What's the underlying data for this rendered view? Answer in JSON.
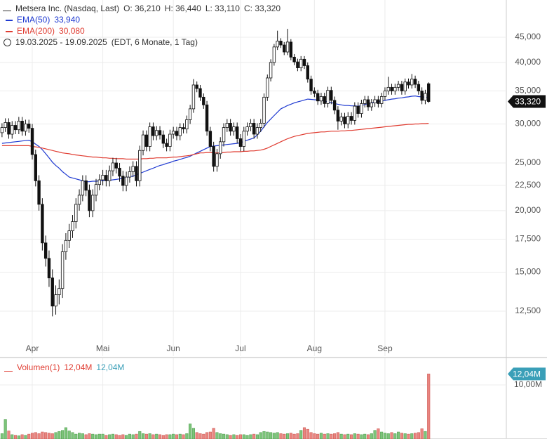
{
  "chart_data": {
    "type": "candlestick",
    "title": "Metsera Inc. (Nasdaq, Last)",
    "ohlc_labels": [
      "O: 36,210",
      "H: 36,440",
      "L: 33,110",
      "C: 33,320"
    ],
    "date_range": "19.03.2025 - 19.09.2025",
    "range_info": "(EDT, 6 Monate, 1 Tag)",
    "log_scale": true,
    "grid": true,
    "up_color": "#ffffff",
    "down_color": "#111111",
    "open": [
      28.8,
      29.5,
      30.2,
      28.6,
      29.8,
      29.2,
      30.4,
      29.0,
      30.0,
      29.4,
      26.0,
      23.0,
      20.6,
      17.2,
      16.0,
      14.6,
      12.8,
      13.5,
      13.9,
      16.5,
      17.4,
      18.2,
      19.0,
      20.6,
      21.5,
      23.0,
      22.0,
      20.0,
      21.5,
      22.6,
      23.1,
      23.6,
      23.0,
      24.1,
      25.0,
      24.4,
      23.5,
      22.5,
      23.4,
      24.0,
      24.6,
      23.0,
      26.5,
      28.5,
      27.0,
      29.6,
      28.4,
      29.1,
      28.5,
      27.4,
      27.0,
      28.6,
      29.0,
      28.4,
      29.5,
      29.3,
      30.6,
      32.2,
      36.0,
      35.4,
      34.0,
      32.8,
      29.0,
      27.0,
      24.6,
      26.1,
      27.6,
      29.5,
      30.1,
      29.0,
      29.6,
      28.0,
      27.0,
      29.0,
      29.6,
      30.1,
      28.6,
      29.5,
      30.1,
      34.0,
      37.2,
      40.0,
      43.0,
      44.2,
      43.4,
      42.0,
      44.0,
      41.0,
      40.1,
      39.0,
      40.6,
      39.4,
      37.0,
      35.0,
      34.6,
      33.4,
      34.1,
      33.0,
      35.1,
      33.5,
      32.0,
      30.4,
      31.0,
      30.0,
      31.1,
      30.5,
      32.6,
      31.5,
      33.0,
      33.6,
      32.5,
      33.1,
      33.6,
      33.0,
      34.1,
      35.0,
      35.6,
      35.0,
      35.6,
      36.1,
      35.0,
      36.5,
      36.0,
      37.0,
      36.1,
      35.0,
      33.5,
      36.21
    ],
    "high": [
      30.1,
      30.8,
      30.8,
      30.4,
      30.4,
      31.0,
      31.0,
      30.6,
      30.6,
      30.0,
      26.6,
      23.6,
      21.2,
      17.8,
      16.6,
      15.2,
      14.1,
      14.5,
      17.1,
      18.0,
      18.8,
      19.6,
      21.2,
      22.1,
      23.6,
      23.6,
      22.6,
      22.1,
      23.2,
      23.7,
      24.2,
      24.2,
      24.7,
      25.6,
      25.6,
      25.0,
      24.1,
      24.0,
      24.6,
      25.2,
      25.2,
      27.1,
      29.1,
      29.1,
      30.2,
      30.2,
      29.7,
      29.7,
      29.1,
      28.0,
      29.2,
      29.6,
      29.6,
      30.1,
      30.1,
      31.2,
      32.8,
      37.0,
      36.6,
      36.0,
      34.6,
      33.4,
      29.6,
      27.6,
      26.7,
      28.2,
      30.1,
      30.7,
      30.7,
      30.2,
      30.2,
      28.6,
      29.6,
      30.2,
      30.7,
      30.7,
      30.1,
      30.7,
      34.6,
      37.8,
      40.6,
      43.6,
      46.4,
      44.8,
      44.0,
      46.8,
      44.6,
      41.6,
      40.7,
      41.2,
      41.2,
      40.0,
      37.6,
      35.6,
      35.2,
      34.7,
      34.7,
      35.7,
      35.7,
      34.1,
      32.6,
      31.6,
      31.6,
      31.7,
      31.7,
      33.2,
      33.2,
      33.6,
      34.2,
      34.2,
      33.7,
      34.2,
      34.2,
      34.7,
      35.6,
      37.4,
      36.2,
      36.2,
      36.7,
      36.7,
      37.1,
      37.1,
      37.9,
      37.6,
      36.7,
      35.6,
      35.2,
      36.44
    ],
    "low": [
      28.2,
      28.9,
      28.0,
      28.0,
      28.6,
      28.6,
      28.4,
      28.4,
      28.8,
      25.4,
      22.4,
      20.0,
      16.6,
      15.4,
      14.0,
      12.2,
      12.3,
      12.9,
      13.3,
      15.9,
      16.8,
      17.6,
      18.4,
      20.0,
      20.9,
      21.4,
      19.4,
      19.4,
      20.9,
      22.0,
      22.5,
      22.4,
      22.4,
      23.5,
      23.8,
      22.9,
      21.9,
      21.9,
      22.8,
      23.4,
      22.4,
      22.4,
      25.9,
      26.4,
      26.4,
      27.8,
      27.8,
      27.9,
      26.8,
      26.4,
      26.4,
      28.0,
      27.8,
      27.8,
      28.7,
      28.7,
      30.0,
      31.6,
      34.8,
      33.4,
      32.2,
      28.4,
      26.4,
      24.0,
      24.0,
      25.5,
      27.0,
      28.9,
      28.4,
      28.4,
      27.4,
      26.4,
      26.4,
      28.4,
      29.0,
      28.0,
      28.0,
      28.9,
      29.5,
      33.4,
      36.6,
      39.4,
      42.4,
      42.8,
      41.4,
      41.4,
      40.4,
      39.5,
      38.4,
      38.4,
      38.8,
      36.4,
      34.4,
      34.0,
      32.8,
      32.8,
      32.4,
      32.4,
      32.9,
      31.4,
      29.2,
      29.8,
      29.4,
      29.4,
      29.9,
      29.9,
      30.9,
      30.9,
      32.4,
      31.9,
      31.9,
      32.5,
      32.4,
      32.4,
      33.5,
      34.4,
      34.4,
      34.4,
      35.0,
      34.4,
      34.4,
      35.4,
      35.4,
      35.5,
      34.4,
      32.9,
      32.9,
      33.11
    ],
    "close": [
      29.5,
      30.2,
      28.6,
      29.8,
      29.2,
      30.4,
      29.0,
      30.0,
      29.4,
      26.0,
      23.0,
      20.6,
      17.2,
      16.0,
      14.6,
      12.8,
      13.5,
      13.9,
      16.5,
      17.4,
      18.2,
      19.0,
      20.6,
      21.5,
      23.0,
      22.0,
      20.0,
      21.5,
      22.6,
      23.1,
      23.6,
      23.0,
      24.1,
      25.0,
      24.4,
      23.5,
      22.5,
      23.4,
      24.0,
      24.6,
      23.0,
      26.5,
      28.5,
      27.0,
      29.6,
      28.4,
      29.1,
      28.5,
      27.4,
      27.0,
      28.6,
      29.0,
      28.4,
      29.5,
      29.3,
      30.6,
      32.2,
      36.0,
      35.4,
      34.0,
      32.8,
      29.0,
      27.0,
      24.6,
      26.1,
      27.6,
      29.5,
      30.1,
      29.0,
      29.6,
      28.0,
      27.0,
      29.0,
      29.6,
      30.1,
      28.6,
      29.5,
      30.1,
      34.0,
      37.2,
      40.0,
      43.0,
      44.2,
      43.4,
      42.0,
      44.0,
      41.0,
      40.1,
      39.0,
      40.6,
      39.4,
      37.0,
      35.0,
      34.6,
      33.4,
      34.1,
      33.0,
      35.1,
      33.5,
      32.0,
      30.4,
      31.0,
      30.0,
      31.1,
      30.5,
      32.6,
      31.5,
      33.0,
      33.6,
      32.5,
      33.1,
      33.6,
      33.0,
      34.1,
      35.0,
      35.6,
      35.0,
      35.6,
      36.1,
      35.0,
      36.5,
      36.0,
      37.0,
      36.1,
      35.0,
      33.5,
      34.6,
      33.32
    ],
    "series": [
      {
        "name": "EMA(50)",
        "color": "#1f3ad1",
        "value_label": "33,940",
        "values": [
          27.4,
          27.45,
          27.5,
          27.55,
          27.6,
          27.65,
          27.7,
          27.75,
          27.8,
          27.6,
          27.3,
          27.0,
          26.6,
          26.1,
          25.6,
          25.1,
          24.7,
          24.4,
          24.0,
          23.7,
          23.4,
          23.3,
          23.2,
          23.1,
          23.0,
          22.9,
          22.9,
          22.95,
          22.95,
          23.0,
          23.0,
          23.05,
          23.05,
          23.1,
          23.15,
          23.2,
          23.3,
          23.35,
          23.45,
          23.5,
          23.65,
          23.8,
          23.95,
          24.1,
          24.25,
          24.4,
          24.55,
          24.7,
          24.8,
          24.95,
          25.05,
          25.2,
          25.3,
          25.4,
          25.55,
          25.65,
          25.8,
          26.0,
          26.2,
          26.4,
          26.6,
          26.8,
          27.0,
          27.05,
          27.1,
          27.15,
          27.2,
          27.25,
          27.3,
          27.35,
          27.4,
          27.5,
          27.65,
          27.8,
          27.95,
          28.1,
          28.5,
          29.0,
          29.6,
          30.2,
          30.7,
          31.2,
          31.7,
          32.2,
          32.45,
          32.7,
          32.9,
          33.1,
          33.25,
          33.4,
          33.55,
          33.7,
          33.65,
          33.6,
          33.55,
          33.5,
          33.4,
          33.25,
          33.15,
          33.0,
          32.9,
          32.8,
          32.7,
          32.7,
          32.65,
          32.65,
          32.6,
          32.7,
          32.85,
          33.0,
          33.1,
          33.2,
          33.3,
          33.4,
          33.5,
          33.6,
          33.7,
          33.75,
          33.85,
          33.9,
          34.0,
          34.05,
          34.15,
          34.2,
          34.1,
          34.05,
          34.0,
          33.94
        ]
      },
      {
        "name": "EMA(200)",
        "color": "#e03c31",
        "value_label": "30,080",
        "values": [
          27.1,
          27.1,
          27.1,
          27.1,
          27.1,
          27.1,
          27.1,
          27.1,
          27.1,
          27.0,
          26.95,
          26.9,
          26.8,
          26.7,
          26.6,
          26.5,
          26.4,
          26.3,
          26.2,
          26.15,
          26.1,
          26.0,
          25.95,
          25.9,
          25.85,
          25.8,
          25.75,
          25.7,
          25.7,
          25.65,
          25.6,
          25.6,
          25.55,
          25.55,
          25.5,
          25.5,
          25.5,
          25.45,
          25.45,
          25.45,
          25.45,
          25.45,
          25.5,
          25.5,
          25.55,
          25.55,
          25.6,
          25.6,
          25.6,
          25.6,
          25.65,
          25.7,
          25.7,
          25.75,
          25.8,
          25.85,
          25.9,
          26.0,
          26.1,
          26.2,
          26.2,
          26.25,
          26.25,
          26.2,
          26.2,
          26.2,
          26.25,
          26.3,
          26.3,
          26.35,
          26.35,
          26.35,
          26.4,
          26.4,
          26.45,
          26.45,
          26.5,
          26.55,
          26.65,
          26.8,
          27.0,
          27.2,
          27.4,
          27.6,
          27.8,
          28.0,
          28.15,
          28.3,
          28.4,
          28.5,
          28.6,
          28.7,
          28.75,
          28.8,
          28.85,
          28.9,
          28.9,
          28.95,
          29.0,
          29.0,
          29.0,
          29.05,
          29.05,
          29.1,
          29.1,
          29.15,
          29.2,
          29.25,
          29.3,
          29.35,
          29.4,
          29.45,
          29.5,
          29.55,
          29.6,
          29.65,
          29.7,
          29.75,
          29.8,
          29.85,
          29.9,
          29.95,
          29.95,
          30.0,
          30.0,
          30.05,
          30.05,
          30.08
        ]
      }
    ],
    "xticks": [
      {
        "value": 9,
        "label": "Apr"
      },
      {
        "value": 30,
        "label": "Mai"
      },
      {
        "value": 51,
        "label": "Jun"
      },
      {
        "value": 71,
        "label": "Jul"
      },
      {
        "value": 93,
        "label": "Aug"
      },
      {
        "value": 114,
        "label": "Sep"
      }
    ],
    "ylim": [
      10.13,
      53.56
    ],
    "yticks": [
      {
        "value": 12.5,
        "label": "12,500"
      },
      {
        "value": 15,
        "label": "15,000"
      },
      {
        "value": 17.5,
        "label": "17,500"
      },
      {
        "value": 20,
        "label": "20,000"
      },
      {
        "value": 22.5,
        "label": "22,500"
      },
      {
        "value": 25,
        "label": "25,000"
      },
      {
        "value": 30,
        "label": "30,000"
      },
      {
        "value": 35,
        "label": "35,000"
      },
      {
        "value": 40,
        "label": "40,000"
      },
      {
        "value": 45,
        "label": "45,000"
      }
    ],
    "last_price": {
      "value": 33.32,
      "label": "33,320"
    },
    "volume": {
      "name": "Volumen(1)",
      "legend_labels": [
        "12,04M",
        "12,04M"
      ],
      "up_color": "#7cc47a",
      "down_color": "#e98580",
      "tag_color": "#3a9fb8",
      "ylim": [
        0,
        14.94
      ],
      "yticks": [
        {
          "value": 10,
          "label": "10,00M"
        }
      ],
      "last": {
        "value": 12.04,
        "label": "12,04M"
      },
      "values": [
        1.0,
        3.6,
        1.5,
        0.8,
        0.7,
        0.6,
        0.8,
        0.7,
        0.9,
        1.1,
        1.2,
        1.0,
        1.3,
        1.2,
        1.1,
        1.0,
        1.2,
        1.4,
        1.6,
        2.1,
        1.5,
        1.2,
        0.9,
        1.1,
        1.0,
        0.8,
        1.0,
        0.9,
        0.8,
        0.9,
        0.9,
        0.7,
        0.8,
        0.9,
        0.8,
        0.7,
        0.8,
        0.7,
        0.9,
        0.8,
        0.9,
        1.4,
        1.0,
        0.9,
        1.0,
        0.8,
        0.9,
        0.8,
        0.7,
        0.8,
        0.8,
        0.9,
        0.8,
        0.9,
        0.8,
        1.0,
        2.8,
        2.0,
        1.2,
        1.0,
        0.9,
        1.2,
        1.3,
        2.0,
        1.2,
        1.0,
        0.9,
        0.8,
        0.7,
        0.8,
        0.7,
        0.8,
        0.8,
        0.7,
        0.8,
        0.9,
        0.8,
        1.2,
        1.4,
        1.3,
        1.2,
        1.1,
        1.2,
        1.0,
        0.9,
        1.0,
        1.1,
        0.9,
        1.0,
        1.6,
        2.1,
        1.8,
        1.2,
        1.0,
        0.9,
        1.1,
        0.9,
        1.0,
        0.9,
        1.0,
        1.2,
        0.9,
        0.8,
        0.9,
        0.8,
        1.0,
        0.9,
        0.8,
        0.9,
        0.8,
        1.0,
        1.6,
        1.9,
        1.3,
        1.1,
        1.0,
        1.2,
        1.0,
        1.3,
        1.1,
        1.0,
        0.9,
        1.0,
        1.1,
        1.2,
        1.9,
        1.4,
        12.04
      ]
    }
  }
}
